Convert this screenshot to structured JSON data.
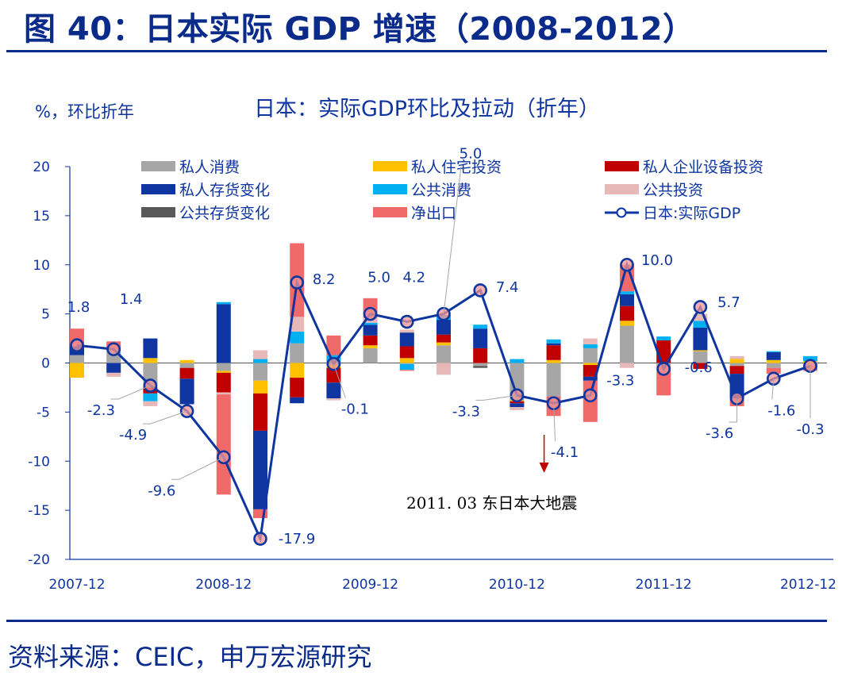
{
  "figure_title": "图 40：日本实际 GDP 增速（2008-2012）",
  "source": "资料来源：CEIC，申万宏源研究",
  "chart_data": {
    "type": "stacked-bar+line",
    "title": "日本：实际GDP环比及拉动（折年）",
    "ylabel": "%，环比折年",
    "ylim": [
      -20,
      20
    ],
    "yticks": [
      20,
      15,
      10,
      5,
      0,
      -5,
      -10,
      -15,
      -20
    ],
    "xtick_labels": [
      "2007-12",
      "2008-12",
      "2009-12",
      "2010-12",
      "2011-12",
      "2012-12"
    ],
    "xtick_quarter_index": [
      0,
      4,
      8,
      12,
      16,
      20
    ],
    "quarters": [
      "2007-12",
      "2008-03",
      "2008-06",
      "2008-09",
      "2008-12",
      "2009-03",
      "2009-06",
      "2009-09",
      "2009-12",
      "2010-03",
      "2010-06",
      "2010-09",
      "2010-12",
      "2011-03",
      "2011-06",
      "2011-09",
      "2011-12",
      "2012-03",
      "2012-06",
      "2012-09",
      "2012-12"
    ],
    "series": [
      {
        "name": "私人消费",
        "color": "#a6a6a6",
        "values": [
          0.8,
          1.3,
          -2.5,
          -0.5,
          -0.8,
          -1.8,
          2.0,
          -0.2,
          1.5,
          -0.1,
          1.8,
          -0.3,
          -3.8,
          -3.4,
          1.5,
          3.8,
          -0.3,
          1.2,
          -0.3,
          -0.5,
          -0.2
        ]
      },
      {
        "name": "私人住宅投资",
        "color": "#ffc000",
        "values": [
          -1.5,
          0.0,
          0.5,
          0.3,
          -0.2,
          -1.3,
          -1.5,
          -0.3,
          0.3,
          0.5,
          0.3,
          0.0,
          -0.1,
          0.3,
          -0.2,
          0.5,
          0.0,
          0.1,
          0.4,
          0.3,
          0.2
        ]
      },
      {
        "name": "私人企业设备投资",
        "color": "#c00000",
        "values": [
          0.0,
          0.0,
          -0.6,
          -1.1,
          -2.0,
          -3.8,
          -2.0,
          -1.5,
          1.0,
          1.2,
          0.8,
          1.5,
          -0.2,
          1.5,
          -1.2,
          1.5,
          2.3,
          -0.6,
          -0.8,
          0.0,
          0.0
        ]
      },
      {
        "name": "私人存货变化",
        "color": "#0e35a0",
        "values": [
          0.9,
          -1.0,
          2.0,
          -2.6,
          6.0,
          -8.0,
          -0.6,
          -1.6,
          1.1,
          1.4,
          1.5,
          2.0,
          -0.4,
          0.2,
          -0.4,
          1.2,
          0.0,
          2.3,
          -2.5,
          0.8,
          0.0
        ]
      },
      {
        "name": "公共消费",
        "color": "#00b0f0",
        "values": [
          0.0,
          0.0,
          -0.8,
          0.0,
          0.2,
          0.4,
          1.2,
          0.8,
          0.2,
          -0.6,
          0.4,
          0.4,
          0.4,
          0.4,
          0.4,
          0.3,
          0.4,
          0.7,
          0.0,
          0.1,
          0.5
        ]
      },
      {
        "name": "公共投资",
        "color": "#e6b9b8",
        "values": [
          0.0,
          -0.4,
          -0.5,
          0.0,
          -0.2,
          0.9,
          1.5,
          -0.2,
          0.5,
          0.3,
          -1.2,
          0.0,
          -0.3,
          0.0,
          0.6,
          -0.5,
          0.0,
          0.7,
          0.3,
          0.0,
          0.0
        ]
      },
      {
        "name": "公共存货变化",
        "color": "#595959",
        "values": [
          0.0,
          0.0,
          0.0,
          0.0,
          0.0,
          0.0,
          0.0,
          0.0,
          0.0,
          0.0,
          0.0,
          -0.2,
          0.0,
          0.0,
          0.0,
          0.0,
          0.0,
          0.0,
          0.0,
          0.0,
          0.0
        ]
      },
      {
        "name": "净出口",
        "color": "#f06a6a",
        "values": [
          1.8,
          0.9,
          0.0,
          0.0,
          -10.2,
          -0.9,
          7.5,
          2.0,
          2.0,
          -0.1,
          0.1,
          0.0,
          0.0,
          -2.0,
          -4.2,
          2.7,
          -3.0,
          0.0,
          -0.8,
          -0.6,
          -0.6
        ]
      }
    ],
    "line": {
      "name": "日本:实际GDP",
      "color": "#0e35a0",
      "values": [
        1.8,
        1.4,
        -2.3,
        -4.9,
        -9.6,
        -17.9,
        8.2,
        -0.1,
        5.0,
        4.2,
        5.0,
        7.4,
        -3.3,
        -4.1,
        -3.3,
        10.0,
        -0.6,
        5.7,
        -3.6,
        -1.6,
        -0.3
      ],
      "label_texts": [
        "1.8",
        "1.4",
        "-2.3",
        "-4.9",
        "-9.6",
        "-17.9",
        "8.2",
        "-0.1",
        "5.0",
        "4.2",
        "5.0",
        "7.4",
        "-3.3",
        "-4.1",
        "-3.3",
        "10.0",
        "-0.6",
        "5.7",
        "-3.6",
        "-1.6",
        "-0.3"
      ]
    },
    "legend_position": "top",
    "annotation": {
      "text": "2011. 03  东日本大地震",
      "quarter": "2011-03",
      "arrow_color": "#c00000"
    }
  }
}
